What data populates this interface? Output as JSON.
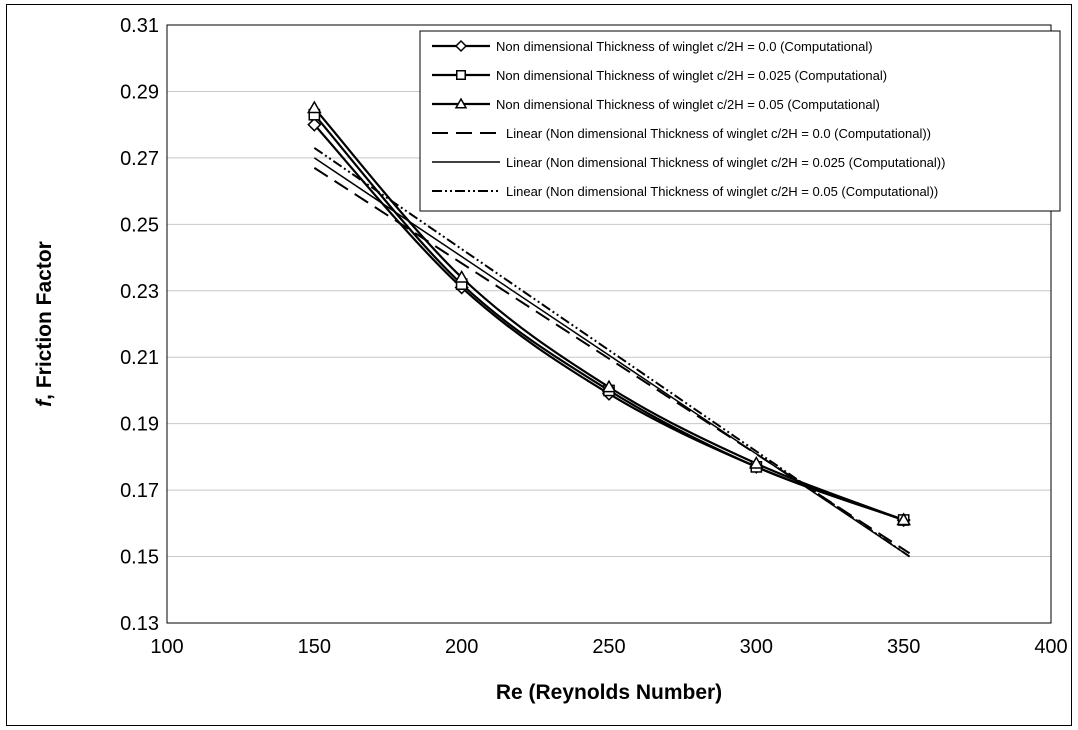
{
  "chart_data": {
    "type": "line",
    "xlabel": "Re (Reynolds Number)",
    "ylabel_italic_prefix": "f",
    "ylabel_rest": ", Friction Factor",
    "xlim": [
      100,
      400
    ],
    "ylim": [
      0.13,
      0.31
    ],
    "x_ticks": [
      "100",
      "150",
      "200",
      "250",
      "300",
      "350",
      "400"
    ],
    "y_ticks": [
      "0.31",
      "0.29",
      "0.27",
      "0.25",
      "0.23",
      "0.21",
      "0.19",
      "0.17",
      "0.15",
      "0.13"
    ],
    "grid": "horizontal",
    "legend_position": "top-right",
    "series": [
      {
        "name": "Non dimensional Thickness of winglet c/2H = 0.0 (Computational)",
        "style": "solid",
        "marker": "diamond",
        "x": [
          150,
          200,
          250,
          300,
          350
        ],
        "y": [
          0.28,
          0.231,
          0.199,
          0.177,
          0.161
        ]
      },
      {
        "name": "Non dimensional Thickness of winglet c/2H = 0.025 (Computational)",
        "style": "solid",
        "marker": "square",
        "x": [
          150,
          200,
          250,
          300,
          350
        ],
        "y": [
          0.283,
          0.232,
          0.2,
          0.177,
          0.161
        ]
      },
      {
        "name": "Non dimensional Thickness of winglet c/2H = 0.05 (Computational)",
        "style": "solid",
        "marker": "triangle",
        "x": [
          150,
          200,
          250,
          300,
          350
        ],
        "y": [
          0.285,
          0.234,
          0.201,
          0.178,
          0.161
        ]
      },
      {
        "name": "Linear (Non dimensional Thickness of winglet c/2H = 0.0 (Computational))",
        "style": "dashed",
        "marker": "none",
        "x": [
          150,
          352
        ],
        "y": [
          0.267,
          0.151
        ]
      },
      {
        "name": "Linear (Non dimensional Thickness of winglet c/2H = 0.025 (Computational))",
        "style": "thin-solid",
        "marker": "none",
        "x": [
          150,
          352
        ],
        "y": [
          0.27,
          0.15
        ]
      },
      {
        "name": "Linear (Non dimensional Thickness of winglet c/2H = 0.05 (Computational))",
        "style": "dash-dot",
        "marker": "none",
        "x": [
          150,
          352
        ],
        "y": [
          0.273,
          0.15
        ]
      }
    ]
  }
}
